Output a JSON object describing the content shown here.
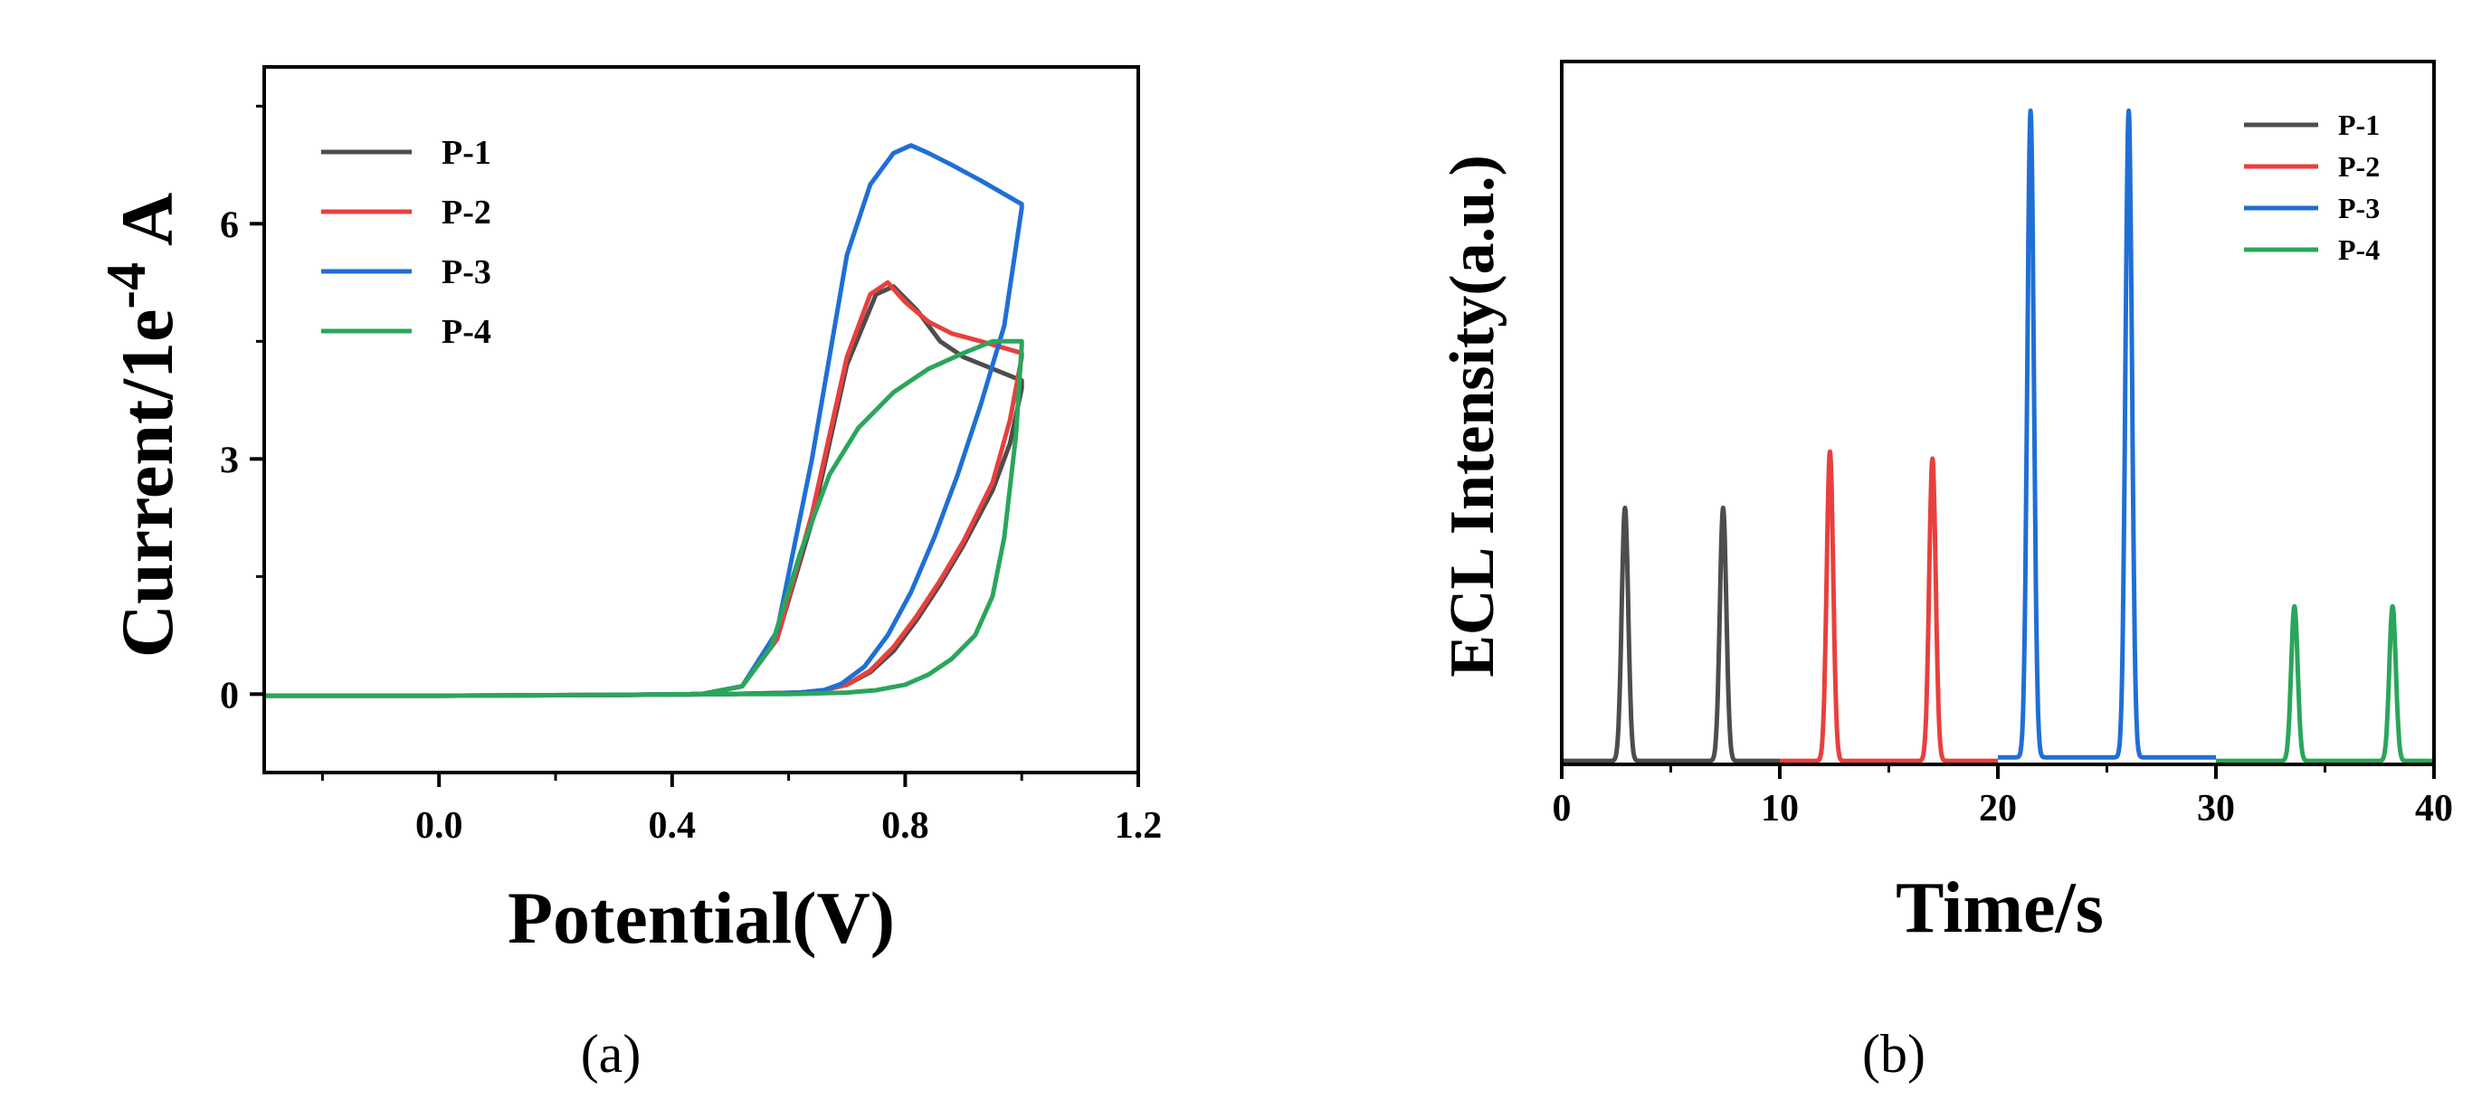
{
  "chart_data": [
    {
      "panel": "(a)",
      "type": "line",
      "title": "",
      "xlabel": "Potential(V)",
      "ylabel_base": "Current/1e",
      "ylabel_exp": "-4",
      "ylabel_unit": "A",
      "xlim": [
        -0.3,
        1.2
      ],
      "ylim": [
        -1,
        8
      ],
      "xticks": [
        0.0,
        0.4,
        0.8,
        1.2
      ],
      "xtick_labels": [
        "0.0",
        "0.4",
        "0.8",
        "1.2"
      ],
      "yticks": [
        0,
        3,
        6
      ],
      "ytick_labels": [
        "0",
        "3",
        "6"
      ],
      "legend_position": "top-left",
      "series": [
        {
          "name": "P-1",
          "color": "#4d4d4d",
          "x": [
            -0.3,
            0.0,
            0.3,
            0.45,
            0.52,
            0.58,
            0.64,
            0.7,
            0.75,
            0.78,
            0.82,
            0.86,
            0.9,
            0.95,
            1.0,
            1.0,
            0.98,
            0.95,
            0.9,
            0.86,
            0.82,
            0.78,
            0.74,
            0.7,
            0.66,
            0.62,
            0.5,
            0.3,
            0.0,
            -0.3
          ],
          "y": [
            -0.02,
            -0.02,
            -0.01,
            0.0,
            0.1,
            0.7,
            2.2,
            4.2,
            5.1,
            5.2,
            4.9,
            4.5,
            4.3,
            4.15,
            4.0,
            3.9,
            3.2,
            2.6,
            1.9,
            1.4,
            0.95,
            0.55,
            0.28,
            0.12,
            0.05,
            0.02,
            0.0,
            -0.01,
            -0.02,
            -0.02
          ]
        },
        {
          "name": "P-2",
          "color": "#e8403d",
          "x": [
            -0.3,
            0.0,
            0.3,
            0.45,
            0.52,
            0.58,
            0.64,
            0.7,
            0.74,
            0.77,
            0.8,
            0.84,
            0.88,
            0.93,
            1.0,
            1.0,
            0.98,
            0.95,
            0.9,
            0.86,
            0.82,
            0.78,
            0.74,
            0.7,
            0.66,
            0.62,
            0.5,
            0.3,
            0.0,
            -0.3
          ],
          "y": [
            -0.02,
            -0.02,
            -0.01,
            0.0,
            0.1,
            0.7,
            2.3,
            4.3,
            5.1,
            5.25,
            5.0,
            4.75,
            4.6,
            4.5,
            4.35,
            4.3,
            3.5,
            2.7,
            1.95,
            1.45,
            1.0,
            0.6,
            0.3,
            0.12,
            0.05,
            0.02,
            0.0,
            -0.01,
            -0.02,
            -0.02
          ]
        },
        {
          "name": "P-3",
          "color": "#1f6fd6",
          "x": [
            -0.3,
            0.0,
            0.3,
            0.45,
            0.52,
            0.58,
            0.64,
            0.7,
            0.74,
            0.78,
            0.81,
            0.84,
            0.88,
            0.93,
            1.0,
            1.0,
            0.97,
            0.93,
            0.89,
            0.85,
            0.81,
            0.77,
            0.73,
            0.69,
            0.66,
            0.62,
            0.5,
            0.3,
            0.0,
            -0.3
          ],
          "y": [
            -0.02,
            -0.02,
            -0.01,
            0.0,
            0.1,
            0.8,
            3.0,
            5.6,
            6.5,
            6.9,
            7.0,
            6.9,
            6.75,
            6.55,
            6.25,
            6.2,
            4.7,
            3.7,
            2.8,
            2.0,
            1.3,
            0.75,
            0.35,
            0.13,
            0.05,
            0.02,
            0.0,
            -0.01,
            -0.02,
            -0.02
          ]
        },
        {
          "name": "P-4",
          "color": "#2aa65a",
          "x": [
            -0.3,
            0.0,
            0.3,
            0.45,
            0.52,
            0.57,
            0.62,
            0.67,
            0.72,
            0.78,
            0.84,
            0.9,
            0.95,
            1.0,
            1.0,
            0.99,
            0.97,
            0.95,
            0.92,
            0.88,
            0.84,
            0.8,
            0.75,
            0.7,
            0.6,
            0.5,
            0.3,
            0.0,
            -0.3
          ],
          "y": [
            -0.02,
            -0.02,
            -0.01,
            0.0,
            0.1,
            0.6,
            1.8,
            2.8,
            3.4,
            3.85,
            4.15,
            4.35,
            4.5,
            4.5,
            4.45,
            3.3,
            2.0,
            1.25,
            0.75,
            0.45,
            0.25,
            0.12,
            0.05,
            0.02,
            0.0,
            0.0,
            -0.01,
            -0.02,
            -0.02
          ]
        }
      ]
    },
    {
      "panel": "(b)",
      "type": "line",
      "title": "",
      "xlabel": "Time/s",
      "ylabel": "ECL Intensity(a.u.)",
      "xlim": [
        0,
        40
      ],
      "ylim": [
        0,
        100
      ],
      "xticks": [
        0,
        10,
        20,
        30,
        40
      ],
      "xtick_labels": [
        "0",
        "10",
        "20",
        "30",
        "40"
      ],
      "legend_position": "top-right",
      "peak_width_s": 0.15,
      "series": [
        {
          "name": "P-1",
          "color": "#4d4d4d",
          "segment": [
            0,
            10
          ],
          "baseline": 0.5,
          "peaks": [
            {
              "t": 2.9,
              "h": 36
            },
            {
              "t": 7.4,
              "h": 36
            }
          ]
        },
        {
          "name": "P-2",
          "color": "#e8403d",
          "segment": [
            10,
            20
          ],
          "baseline": 0.5,
          "peaks": [
            {
              "t": 12.3,
              "h": 44
            },
            {
              "t": 17.0,
              "h": 43
            }
          ]
        },
        {
          "name": "P-3",
          "color": "#1f6fd6",
          "segment": [
            20,
            30
          ],
          "baseline": 1.0,
          "peaks": [
            {
              "t": 21.5,
              "h": 92
            },
            {
              "t": 26.0,
              "h": 92
            }
          ]
        },
        {
          "name": "P-4",
          "color": "#2aa65a",
          "segment": [
            30,
            40
          ],
          "baseline": 0.5,
          "peaks": [
            {
              "t": 33.6,
              "h": 22
            },
            {
              "t": 38.1,
              "h": 22
            }
          ]
        }
      ]
    }
  ]
}
